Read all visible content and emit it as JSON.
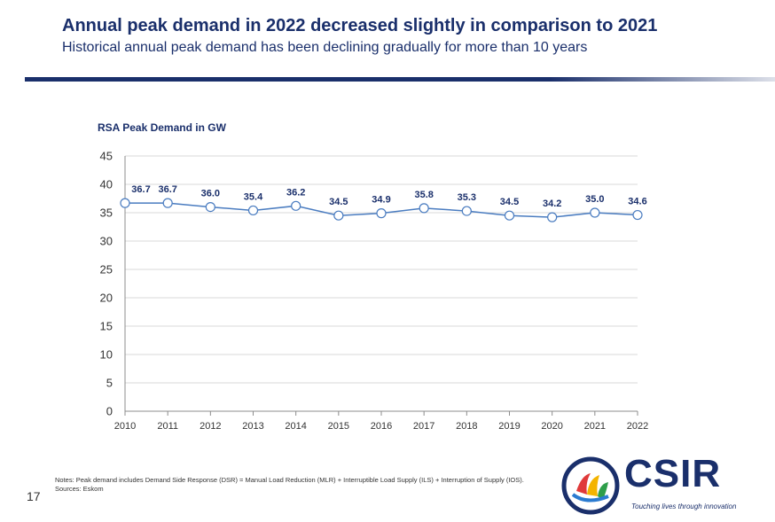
{
  "header": {
    "title": "Annual peak demand in 2022 decreased slightly in comparison to 2021",
    "subtitle": "Historical annual peak demand has been declining gradually for more than 10 years"
  },
  "chart_data": {
    "type": "line",
    "title": "RSA Peak Demand in GW",
    "x": [
      "2010",
      "2011",
      "2012",
      "2013",
      "2014",
      "2015",
      "2016",
      "2017",
      "2018",
      "2019",
      "2020",
      "2021",
      "2022"
    ],
    "series": [
      {
        "values": [
          36.7,
          36.7,
          36.0,
          35.4,
          36.2,
          34.5,
          34.9,
          35.8,
          35.3,
          34.5,
          34.2,
          35.0,
          34.6
        ]
      }
    ],
    "data_labels": [
      "36.7",
      "36.7",
      "36.0",
      "35.4",
      "36.2",
      "34.5",
      "34.9",
      "35.8",
      "35.3",
      "34.5",
      "34.2",
      "35.0",
      "34.6"
    ],
    "ylim": [
      0,
      45
    ],
    "yticks": [
      0,
      5,
      10,
      15,
      20,
      25,
      30,
      35,
      40,
      45
    ],
    "grid": true,
    "line_color": "#4a7cc0"
  },
  "footer": {
    "notes_line1": "Notes: Peak demand includes Demand Side Response (DSR) = Manual Load Reduction (MLR) + Interruptible Load Supply (ILS) + Interruption of Supply (IOS).",
    "notes_line2": "Sources: Eskom",
    "page_number": "17",
    "logo_text": "CSIR",
    "tagline": "Touching lives through innovation"
  }
}
